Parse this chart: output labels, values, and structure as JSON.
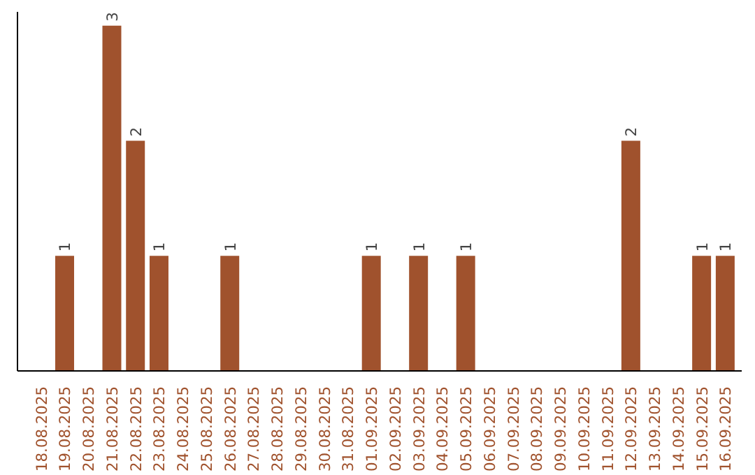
{
  "chart_data": {
    "type": "bar",
    "categories": [
      "18.08.2025",
      "19.08.2025",
      "20.08.2025",
      "21.08.2025",
      "22.08.2025",
      "23.08.2025",
      "24.08.2025",
      "25.08.2025",
      "26.08.2025",
      "27.08.2025",
      "28.08.2025",
      "29.08.2025",
      "30.08.2025",
      "31.08.2025",
      "01.09.2025",
      "02.09.2025",
      "03.09.2025",
      "04.09.2025",
      "05.09.2025",
      "06.09.2025",
      "07.09.2025",
      "08.09.2025",
      "09.09.2025",
      "10.09.2025",
      "11.09.2025",
      "12.09.2025",
      "13.09.2025",
      "14.09.2025",
      "15.09.2025",
      "16.09.2025"
    ],
    "values": [
      0,
      1,
      0,
      3,
      2,
      1,
      0,
      0,
      1,
      0,
      0,
      0,
      0,
      0,
      1,
      0,
      1,
      0,
      1,
      0,
      0,
      0,
      0,
      0,
      0,
      2,
      0,
      0,
      1,
      1
    ],
    "value_labels": [
      null,
      "1",
      null,
      "3",
      "2",
      "1",
      null,
      null,
      "1",
      null,
      null,
      null,
      null,
      null,
      "1",
      null,
      "1",
      null,
      "1",
      null,
      null,
      null,
      null,
      null,
      null,
      "2",
      null,
      null,
      "1",
      "1"
    ],
    "color": "#a0522d",
    "grid": false,
    "tick_labels": "x"
  }
}
